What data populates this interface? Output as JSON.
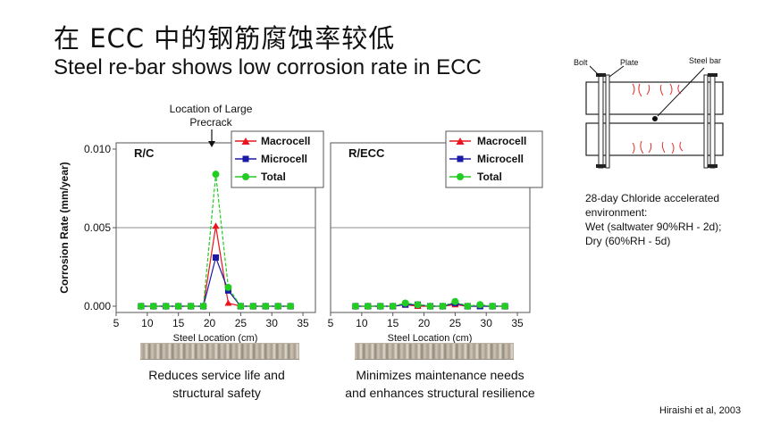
{
  "title": {
    "chinese": "在 ECC 中的钢筋腐蚀率较低",
    "english": "Steel re-bar shows low corrosion rate in ECC"
  },
  "chart_data": [
    {
      "type": "line",
      "panel_label": "R/C",
      "ylabel": "Corrosion Rate (mm/year)",
      "xlabel": "Steel Location (cm)",
      "xlim": [
        5,
        37
      ],
      "ylim": [
        0,
        0.0105
      ],
      "xticks": [
        "5",
        "10",
        "15",
        "20",
        "25",
        "30",
        "35"
      ],
      "yticks": [
        "0.000",
        "0.005",
        "0.010"
      ],
      "annotation": {
        "line1": "Location of Large",
        "line2": "Precrack",
        "x": 21
      },
      "legend": [
        "Macrocell",
        "Microcell",
        "Total"
      ],
      "x": [
        9,
        11,
        13,
        15,
        17,
        19,
        21,
        23,
        25,
        27,
        29,
        31,
        33
      ],
      "series": [
        {
          "name": "Macrocell",
          "color": "#e8141e",
          "marker": "triangle",
          "values": [
            0,
            0,
            0,
            0,
            0,
            0,
            0.0051,
            0.0002,
            0,
            0,
            0,
            0,
            0
          ]
        },
        {
          "name": "Microcell",
          "color": "#1a1aa6",
          "marker": "square",
          "values": [
            0,
            0,
            0,
            0,
            0,
            0,
            0.0031,
            0.001,
            0,
            0,
            0,
            0,
            0
          ]
        },
        {
          "name": "Total",
          "color": "#22cc22",
          "marker": "circle",
          "values": [
            0,
            0,
            0,
            0,
            0,
            0,
            0.0084,
            0.0012,
            0,
            0,
            0,
            0,
            0
          ]
        }
      ]
    },
    {
      "type": "line",
      "panel_label": "R/ECC",
      "xlabel": "Steel Location (cm)",
      "xlim": [
        5,
        37
      ],
      "ylim": [
        0,
        0.0105
      ],
      "xticks": [
        "5",
        "10",
        "15",
        "20",
        "25",
        "30",
        "35"
      ],
      "legend": [
        "Macrocell",
        "Microcell",
        "Total"
      ],
      "x": [
        9,
        11,
        13,
        15,
        17,
        19,
        21,
        23,
        25,
        27,
        29,
        31,
        33
      ],
      "series": [
        {
          "name": "Macrocell",
          "color": "#e8141e",
          "marker": "triangle",
          "values": [
            0,
            0,
            0,
            0,
            0.0001,
            0,
            0,
            0,
            0.0001,
            0,
            0,
            0,
            0
          ]
        },
        {
          "name": "Microcell",
          "color": "#1a1aa6",
          "marker": "square",
          "values": [
            0,
            0,
            0,
            0,
            0.0001,
            0.0001,
            0,
            0,
            0.0002,
            0,
            0,
            0,
            0
          ]
        },
        {
          "name": "Total",
          "color": "#22cc22",
          "marker": "circle",
          "values": [
            0,
            0,
            0,
            0,
            0.0002,
            0.0001,
            0,
            0,
            0.0003,
            0,
            0.0001,
            0,
            0
          ]
        }
      ]
    }
  ],
  "captions": {
    "left": {
      "line1": "Reduces service life and",
      "line2": "structural safety"
    },
    "right": {
      "line1": "Minimizes maintenance needs",
      "line2": "and enhances structural resilience"
    }
  },
  "specimen": {
    "bolt": "Bolt",
    "plate": "Plate",
    "steel_bar": "Steel bar"
  },
  "environment_note": {
    "line1": "28-day Chloride accelerated",
    "line2": "environment:",
    "line3": "Wet (saltwater 90%RH - 2d);",
    "line4": "Dry (60%RH - 5d)"
  },
  "citation": "Hiraishi et al, 2003"
}
